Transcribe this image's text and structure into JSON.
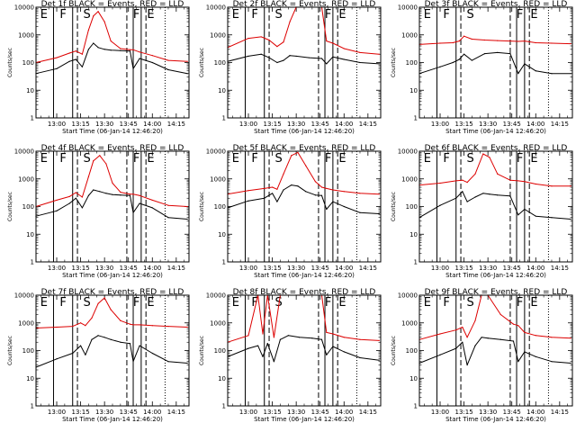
{
  "figure": {
    "colors": {
      "events": "#000000",
      "lld": "#dd0000",
      "axes": "#000000",
      "background": "#ffffff"
    },
    "shared": {
      "ylabel": "Counts/sec",
      "xlabel": "Start Time (06-Jan-14 12:46:20)",
      "xtick_labels": [
        "13:00",
        "13:15",
        "13:30",
        "13:45",
        "14:00",
        "14:15"
      ],
      "ytick_labels": [
        "1",
        "10",
        "100",
        "1000",
        "10000"
      ],
      "marker_letters": [
        "E",
        "F",
        "S",
        "F",
        "E"
      ]
    }
  },
  "chart_data": [
    {
      "type": "line",
      "title": "Det 1f BLACK = Events, RED = LLD",
      "xlabel": "Start Time (06-Jan-14 12:46:20)",
      "ylabel": "Counts/sec",
      "xlim": [
        "12:47",
        "14:23"
      ],
      "ylim": [
        1,
        10000
      ],
      "yscale": "log",
      "grid": false,
      "x": [
        "12:47",
        "13:00",
        "13:08",
        "13:12",
        "13:16",
        "13:20",
        "13:23",
        "13:26",
        "13:30",
        "13:34",
        "13:40",
        "13:46",
        "13:48",
        "13:52",
        "14:00",
        "14:10",
        "14:22"
      ],
      "series": [
        {
          "name": "Events",
          "values": [
            40,
            60,
            110,
            130,
            70,
            300,
            500,
            350,
            300,
            280,
            270,
            260,
            60,
            140,
            100,
            55,
            40
          ]
        },
        {
          "name": "LLD",
          "values": [
            100,
            150,
            220,
            260,
            200,
            1500,
            4800,
            7000,
            3000,
            600,
            320,
            290,
            290,
            240,
            180,
            120,
            110
          ]
        }
      ],
      "vlines": {
        "solid": [
          "12:58",
          "13:10",
          "13:48",
          "13:53"
        ],
        "dashed": [
          "13:13",
          "13:44",
          "13:56"
        ],
        "dotted": [
          "14:08"
        ]
      }
    },
    {
      "type": "line",
      "title": "Det 2f BLACK = Events, RED = LLD",
      "xlabel": "Start Time (06-Jan-14 12:46:20)",
      "ylabel": "Counts/sec",
      "xlim": [
        "12:47",
        "14:23"
      ],
      "ylim": [
        1,
        10000
      ],
      "yscale": "log",
      "grid": false,
      "x": [
        "12:47",
        "13:00",
        "13:08",
        "13:13",
        "13:18",
        "13:22",
        "13:26",
        "13:30",
        "13:38",
        "13:46",
        "13:49",
        "13:53",
        "14:00",
        "14:10",
        "14:22"
      ],
      "series": [
        {
          "name": "Events",
          "values": [
            110,
            170,
            200,
            150,
            100,
            120,
            180,
            170,
            150,
            140,
            90,
            160,
            130,
            100,
            90
          ]
        },
        {
          "name": "LLD",
          "values": [
            350,
            750,
            850,
            650,
            380,
            550,
            3000,
            10000,
            10000,
            10000,
            600,
            500,
            320,
            230,
            200
          ]
        }
      ],
      "vlines": {
        "solid": [
          "12:58",
          "13:10",
          "13:48",
          "13:53"
        ],
        "dashed": [
          "13:13",
          "13:44",
          "13:56"
        ],
        "dotted": [
          "14:08"
        ]
      }
    },
    {
      "type": "line",
      "title": "Det 3f BLACK = Events, RED = LLD",
      "xlabel": "Start Time (06-Jan-14 12:46:20)",
      "ylabel": "Counts/sec",
      "xlim": [
        "12:47",
        "14:23"
      ],
      "ylim": [
        1,
        10000
      ],
      "yscale": "log",
      "grid": false,
      "x": [
        "12:47",
        "13:00",
        "13:08",
        "13:12",
        "13:15",
        "13:20",
        "13:28",
        "13:36",
        "13:44",
        "13:49",
        "13:53",
        "14:00",
        "14:10",
        "14:22"
      ],
      "series": [
        {
          "name": "Events",
          "values": [
            40,
            70,
            100,
            130,
            200,
            120,
            210,
            230,
            210,
            40,
            90,
            50,
            40,
            40
          ]
        },
        {
          "name": "LLD",
          "values": [
            450,
            500,
            520,
            600,
            900,
            700,
            650,
            620,
            600,
            580,
            600,
            520,
            500,
            480
          ]
        }
      ],
      "vlines": {
        "solid": [
          "12:58",
          "13:10",
          "13:48",
          "13:53"
        ],
        "dashed": [
          "13:13",
          "13:44",
          "13:56"
        ],
        "dotted": [
          "14:08"
        ]
      }
    },
    {
      "type": "line",
      "title": "Det 4f BLACK = Events, RED = LLD",
      "xlabel": "Start Time (06-Jan-14 12:46:20)",
      "ylabel": "Counts/sec",
      "xlim": [
        "12:47",
        "14:23"
      ],
      "ylim": [
        1,
        10000
      ],
      "yscale": "log",
      "grid": false,
      "x": [
        "12:47",
        "13:00",
        "13:08",
        "13:12",
        "13:16",
        "13:20",
        "13:23",
        "13:27",
        "13:31",
        "13:35",
        "13:40",
        "13:46",
        "13:48",
        "13:52",
        "14:00",
        "14:10",
        "14:22"
      ],
      "series": [
        {
          "name": "Events",
          "values": [
            45,
            70,
            130,
            200,
            90,
            250,
            400,
            350,
            300,
            270,
            260,
            250,
            60,
            130,
            90,
            40,
            35
          ]
        },
        {
          "name": "LLD",
          "values": [
            100,
            170,
            230,
            320,
            220,
            1200,
            4500,
            7000,
            3500,
            700,
            330,
            280,
            280,
            250,
            170,
            110,
            100
          ]
        }
      ],
      "vlines": {
        "solid": [
          "12:58",
          "13:10",
          "13:48",
          "13:53"
        ],
        "dashed": [
          "13:13",
          "13:44",
          "13:56"
        ],
        "dotted": [
          "14:08"
        ]
      }
    },
    {
      "type": "line",
      "title": "Det 5f BLACK = Events, RED = LLD",
      "xlabel": "Start Time (06-Jan-14 12:46:20)",
      "ylabel": "Counts/sec",
      "xlim": [
        "12:47",
        "14:23"
      ],
      "ylim": [
        1,
        10000
      ],
      "yscale": "log",
      "grid": false,
      "x": [
        "12:47",
        "13:00",
        "13:10",
        "13:15",
        "13:18",
        "13:22",
        "13:27",
        "13:31",
        "13:36",
        "13:42",
        "13:46",
        "13:49",
        "13:53",
        "14:00",
        "14:10",
        "14:22"
      ],
      "series": [
        {
          "name": "Events",
          "values": [
            90,
            160,
            200,
            300,
            150,
            400,
            600,
            550,
            350,
            260,
            250,
            80,
            150,
            100,
            60,
            55
          ]
        },
        {
          "name": "LLD",
          "values": [
            280,
            380,
            450,
            500,
            420,
            1500,
            7000,
            9000,
            3000,
            800,
            500,
            450,
            400,
            350,
            300,
            280
          ]
        }
      ],
      "vlines": {
        "solid": [
          "12:58",
          "13:10",
          "13:48",
          "13:53"
        ],
        "dashed": [
          "13:13",
          "13:44",
          "13:56"
        ],
        "dotted": [
          "14:08"
        ]
      }
    },
    {
      "type": "line",
      "title": "Det 6f BLACK = Events, RED = LLD",
      "xlabel": "Start Time (06-Jan-14 12:46:20)",
      "ylabel": "Counts/sec",
      "xlim": [
        "12:47",
        "14:23"
      ],
      "ylim": [
        1,
        10000
      ],
      "yscale": "log",
      "grid": false,
      "x": [
        "12:47",
        "13:00",
        "13:10",
        "13:14",
        "13:17",
        "13:22",
        "13:27",
        "13:31",
        "13:36",
        "13:44",
        "13:49",
        "13:53",
        "14:00",
        "14:10",
        "14:22"
      ],
      "series": [
        {
          "name": "Events",
          "values": [
            40,
            110,
            200,
            350,
            150,
            220,
            300,
            280,
            260,
            240,
            50,
            80,
            45,
            40,
            35
          ]
        },
        {
          "name": "LLD",
          "values": [
            600,
            700,
            850,
            900,
            750,
            1500,
            8000,
            6000,
            1500,
            900,
            850,
            800,
            650,
            550,
            550
          ]
        }
      ],
      "vlines": {
        "solid": [
          "12:58",
          "13:10",
          "13:48",
          "13:53"
        ],
        "dashed": [
          "13:13",
          "13:44",
          "13:56"
        ],
        "dotted": [
          "14:08"
        ]
      }
    },
    {
      "type": "line",
      "title": "Det 7f BLACK = Events, RED = LLD",
      "xlabel": "Start Time (06-Jan-14 12:46:20)",
      "ylabel": "Counts/sec",
      "xlim": [
        "12:47",
        "14:23"
      ],
      "ylim": [
        1,
        10000
      ],
      "yscale": "log",
      "grid": false,
      "x": [
        "12:47",
        "13:00",
        "13:10",
        "13:15",
        "13:18",
        "13:22",
        "13:26",
        "13:30",
        "13:34",
        "13:40",
        "13:46",
        "13:48",
        "13:52",
        "14:00",
        "14:10",
        "14:22"
      ],
      "series": [
        {
          "name": "Events",
          "values": [
            25,
            50,
            80,
            150,
            70,
            250,
            350,
            300,
            250,
            200,
            180,
            40,
            150,
            80,
            40,
            35
          ]
        },
        {
          "name": "LLD",
          "values": [
            650,
            700,
            750,
            1000,
            800,
            1500,
            5000,
            8000,
            3000,
            1200,
            900,
            850,
            850,
            800,
            750,
            700
          ]
        }
      ],
      "vlines": {
        "solid": [
          "12:58",
          "13:10",
          "13:48",
          "13:53"
        ],
        "dashed": [
          "13:13",
          "13:44",
          "13:56"
        ],
        "dotted": [
          "14:08"
        ]
      }
    },
    {
      "type": "line",
      "title": "Det 8f BLACK = Events, RED = LLD",
      "xlabel": "Start Time (06-Jan-14 12:46:20)",
      "ylabel": "Counts/sec",
      "xlim": [
        "12:47",
        "14:23"
      ],
      "ylim": [
        1,
        10000
      ],
      "yscale": "log",
      "grid": false,
      "x": [
        "12:47",
        "13:00",
        "13:06",
        "13:09",
        "13:12",
        "13:16",
        "13:20",
        "13:25",
        "13:32",
        "13:40",
        "13:46",
        "13:49",
        "13:53",
        "14:00",
        "14:10",
        "14:22"
      ],
      "series": [
        {
          "name": "Events",
          "values": [
            60,
            120,
            150,
            60,
            180,
            40,
            250,
            350,
            300,
            280,
            250,
            70,
            140,
            90,
            55,
            45
          ]
        },
        {
          "name": "LLD",
          "values": [
            200,
            350,
            10000,
            400,
            10000,
            300,
            10000,
            10000,
            10000,
            10000,
            10000,
            450,
            400,
            300,
            250,
            230
          ]
        }
      ],
      "vlines": {
        "solid": [
          "12:58",
          "13:10",
          "13:48",
          "13:53"
        ],
        "dashed": [
          "13:13",
          "13:44",
          "13:56"
        ],
        "dotted": [
          "14:08"
        ]
      }
    },
    {
      "type": "line",
      "title": "Det 9f BLACK = Events, RED = LLD",
      "xlabel": "Start Time (06-Jan-14 12:46:20)",
      "ylabel": "Counts/sec",
      "xlim": [
        "12:47",
        "14:23"
      ],
      "ylim": [
        1,
        10000
      ],
      "yscale": "log",
      "grid": false,
      "x": [
        "12:47",
        "13:00",
        "13:10",
        "13:14",
        "13:17",
        "13:22",
        "13:26",
        "13:30",
        "13:38",
        "13:46",
        "13:49",
        "13:53",
        "14:00",
        "14:10",
        "14:22"
      ],
      "series": [
        {
          "name": "Events",
          "values": [
            35,
            70,
            120,
            200,
            30,
            150,
            300,
            280,
            250,
            220,
            40,
            90,
            60,
            40,
            35
          ]
        },
        {
          "name": "LLD",
          "values": [
            250,
            400,
            550,
            700,
            300,
            1200,
            10000,
            10000,
            2000,
            900,
            800,
            450,
            350,
            300,
            280
          ]
        }
      ],
      "vlines": {
        "solid": [
          "12:58",
          "13:10",
          "13:48",
          "13:53"
        ],
        "dashed": [
          "13:13",
          "13:44",
          "13:56"
        ],
        "dotted": [
          "14:08"
        ]
      }
    }
  ]
}
